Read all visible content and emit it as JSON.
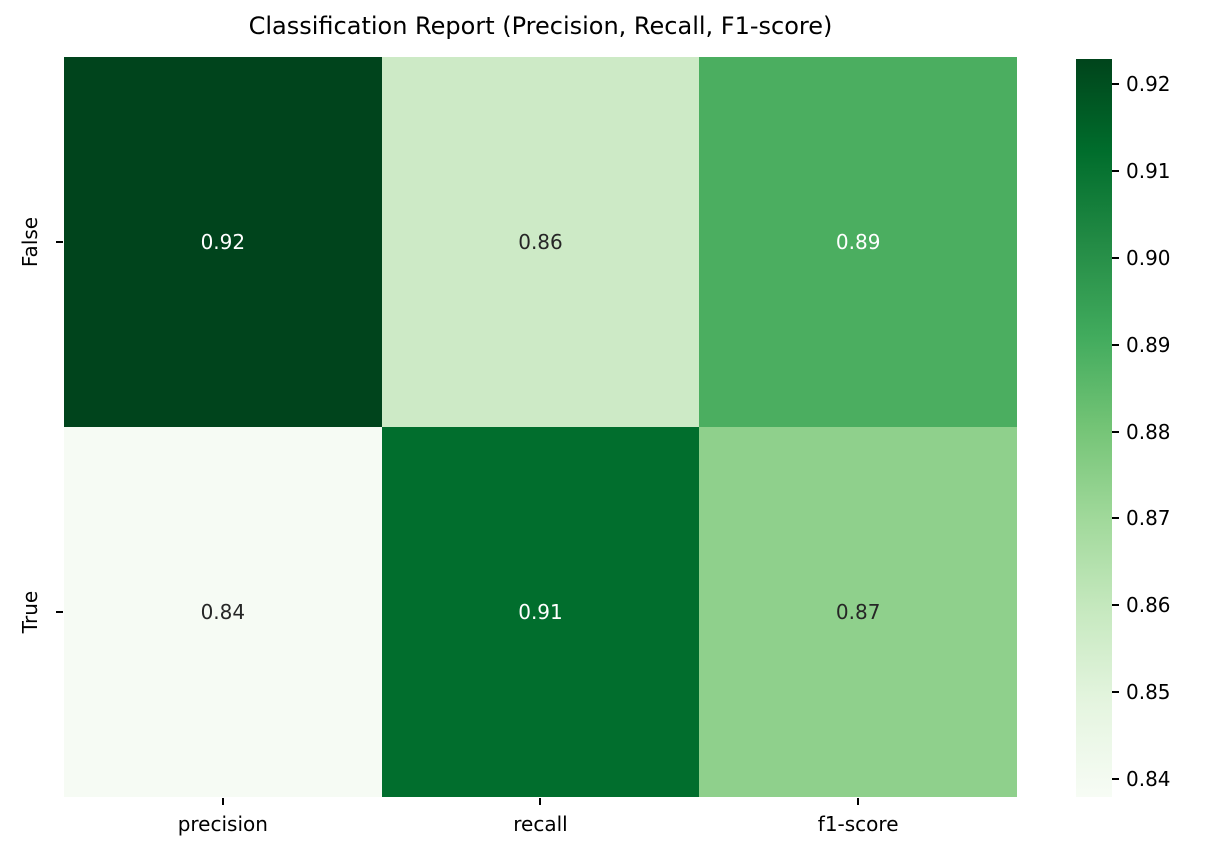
{
  "title": "Classification Report (Precision, Recall, F1-score)",
  "heatmap": {
    "x_tick_labels": [
      "precision",
      "recall",
      "f1-score"
    ],
    "y_tick_labels": [
      "False",
      "True"
    ],
    "cells": [
      {
        "row": "False",
        "column": "precision",
        "label": "0.92",
        "bg": "#00441c",
        "fg": "#ffffff"
      },
      {
        "row": "False",
        "column": "recall",
        "label": "0.86",
        "bg": "#cdeac6",
        "fg": "#262626"
      },
      {
        "row": "False",
        "column": "f1-score",
        "label": "0.89",
        "bg": "#4bae60",
        "fg": "#ffffff"
      },
      {
        "row": "True",
        "column": "precision",
        "label": "0.84",
        "bg": "#f6fbf4",
        "fg": "#262626"
      },
      {
        "row": "True",
        "column": "recall",
        "label": "0.91",
        "bg": "#016e2d",
        "fg": "#ffffff"
      },
      {
        "row": "True",
        "column": "f1-score",
        "label": "0.87",
        "bg": "#8fd08c",
        "fg": "#262626"
      }
    ]
  },
  "colorbar": {
    "ticks": [
      "0.92",
      "0.91",
      "0.90",
      "0.89",
      "0.88",
      "0.87",
      "0.86",
      "0.85",
      "0.84"
    ],
    "gradient_stops": [
      "#00441b",
      "#006d2c",
      "#238b45",
      "#41ab5d",
      "#74c476",
      "#a1d99b",
      "#c7e9c0",
      "#e5f5e0",
      "#f7fcf5"
    ]
  },
  "chart_data": {
    "type": "heatmap",
    "title": "Classification Report (Precision, Recall, F1-score)",
    "rows": [
      "False",
      "True"
    ],
    "columns": [
      "precision",
      "recall",
      "f1-score"
    ],
    "values": [
      [
        0.92,
        0.86,
        0.89
      ],
      [
        0.84,
        0.91,
        0.87
      ]
    ],
    "annotations": [
      [
        "0.92",
        "0.86",
        "0.89"
      ],
      [
        "0.84",
        "0.91",
        "0.87"
      ]
    ],
    "colormap": "Greens",
    "value_range": [
      0.84,
      0.92
    ],
    "colorbar_ticks": [
      0.92,
      0.91,
      0.9,
      0.89,
      0.88,
      0.87,
      0.86,
      0.85,
      0.84
    ],
    "colorbar_position": "right",
    "grid": false
  }
}
